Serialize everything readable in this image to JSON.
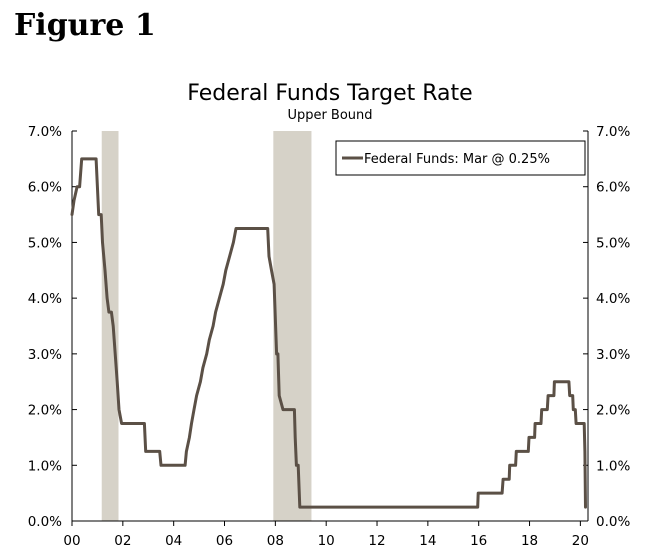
{
  "figure_label": "Figure 1",
  "chart_data": {
    "type": "line",
    "title": "Federal Funds Target Rate",
    "subtitle": "Upper Bound",
    "xlabel": "",
    "ylabel": "",
    "xlim": [
      2000,
      2020.3
    ],
    "ylim": [
      0,
      7
    ],
    "y_ticks": [
      "0.0%",
      "1.0%",
      "2.0%",
      "3.0%",
      "4.0%",
      "5.0%",
      "6.0%",
      "7.0%"
    ],
    "x_ticks": [
      "00",
      "02",
      "04",
      "06",
      "08",
      "10",
      "12",
      "14",
      "16",
      "18",
      "20"
    ],
    "legend": {
      "label": "Federal Funds: Mar @ 0.25%",
      "position": "top-right"
    },
    "colors": {
      "line": "#5b5046",
      "recession": "#d6d2c8",
      "axis": "#000000"
    },
    "recessions": [
      [
        2001.17,
        2001.83
      ],
      [
        2007.92,
        2009.42
      ]
    ],
    "series": [
      {
        "name": "Federal Funds",
        "points": [
          [
            2000.0,
            5.5
          ],
          [
            2000.08,
            5.75
          ],
          [
            2000.2,
            6.0
          ],
          [
            2000.3,
            6.0
          ],
          [
            2000.38,
            6.5
          ],
          [
            2000.95,
            6.5
          ],
          [
            2001.0,
            6.0
          ],
          [
            2001.05,
            5.5
          ],
          [
            2001.15,
            5.5
          ],
          [
            2001.2,
            5.0
          ],
          [
            2001.3,
            4.5
          ],
          [
            2001.38,
            4.0
          ],
          [
            2001.45,
            3.75
          ],
          [
            2001.55,
            3.75
          ],
          [
            2001.62,
            3.5
          ],
          [
            2001.7,
            3.0
          ],
          [
            2001.78,
            2.5
          ],
          [
            2001.85,
            2.0
          ],
          [
            2001.95,
            1.75
          ],
          [
            2002.85,
            1.75
          ],
          [
            2002.9,
            1.25
          ],
          [
            2003.45,
            1.25
          ],
          [
            2003.5,
            1.0
          ],
          [
            2004.45,
            1.0
          ],
          [
            2004.5,
            1.25
          ],
          [
            2004.62,
            1.5
          ],
          [
            2004.7,
            1.75
          ],
          [
            2004.8,
            2.0
          ],
          [
            2004.9,
            2.25
          ],
          [
            2005.05,
            2.5
          ],
          [
            2005.15,
            2.75
          ],
          [
            2005.3,
            3.0
          ],
          [
            2005.4,
            3.25
          ],
          [
            2005.55,
            3.5
          ],
          [
            2005.65,
            3.75
          ],
          [
            2005.8,
            4.0
          ],
          [
            2005.95,
            4.25
          ],
          [
            2006.05,
            4.5
          ],
          [
            2006.2,
            4.75
          ],
          [
            2006.35,
            5.0
          ],
          [
            2006.45,
            5.25
          ],
          [
            2007.7,
            5.25
          ],
          [
            2007.75,
            4.75
          ],
          [
            2007.85,
            4.5
          ],
          [
            2007.95,
            4.25
          ],
          [
            2008.05,
            3.0
          ],
          [
            2008.1,
            3.0
          ],
          [
            2008.15,
            2.25
          ],
          [
            2008.3,
            2.0
          ],
          [
            2008.75,
            2.0
          ],
          [
            2008.78,
            1.5
          ],
          [
            2008.83,
            1.0
          ],
          [
            2008.9,
            1.0
          ],
          [
            2008.96,
            0.25
          ],
          [
            2015.96,
            0.25
          ],
          [
            2015.98,
            0.5
          ],
          [
            2016.92,
            0.5
          ],
          [
            2016.96,
            0.75
          ],
          [
            2017.2,
            0.75
          ],
          [
            2017.22,
            1.0
          ],
          [
            2017.45,
            1.0
          ],
          [
            2017.48,
            1.25
          ],
          [
            2017.95,
            1.25
          ],
          [
            2017.98,
            1.5
          ],
          [
            2018.2,
            1.5
          ],
          [
            2018.22,
            1.75
          ],
          [
            2018.45,
            1.75
          ],
          [
            2018.48,
            2.0
          ],
          [
            2018.7,
            2.0
          ],
          [
            2018.73,
            2.25
          ],
          [
            2018.96,
            2.25
          ],
          [
            2018.98,
            2.5
          ],
          [
            2019.55,
            2.5
          ],
          [
            2019.58,
            2.25
          ],
          [
            2019.7,
            2.25
          ],
          [
            2019.72,
            2.0
          ],
          [
            2019.8,
            2.0
          ],
          [
            2019.83,
            1.75
          ],
          [
            2020.15,
            1.75
          ],
          [
            2020.18,
            1.25
          ],
          [
            2020.2,
            0.25
          ]
        ]
      }
    ]
  }
}
